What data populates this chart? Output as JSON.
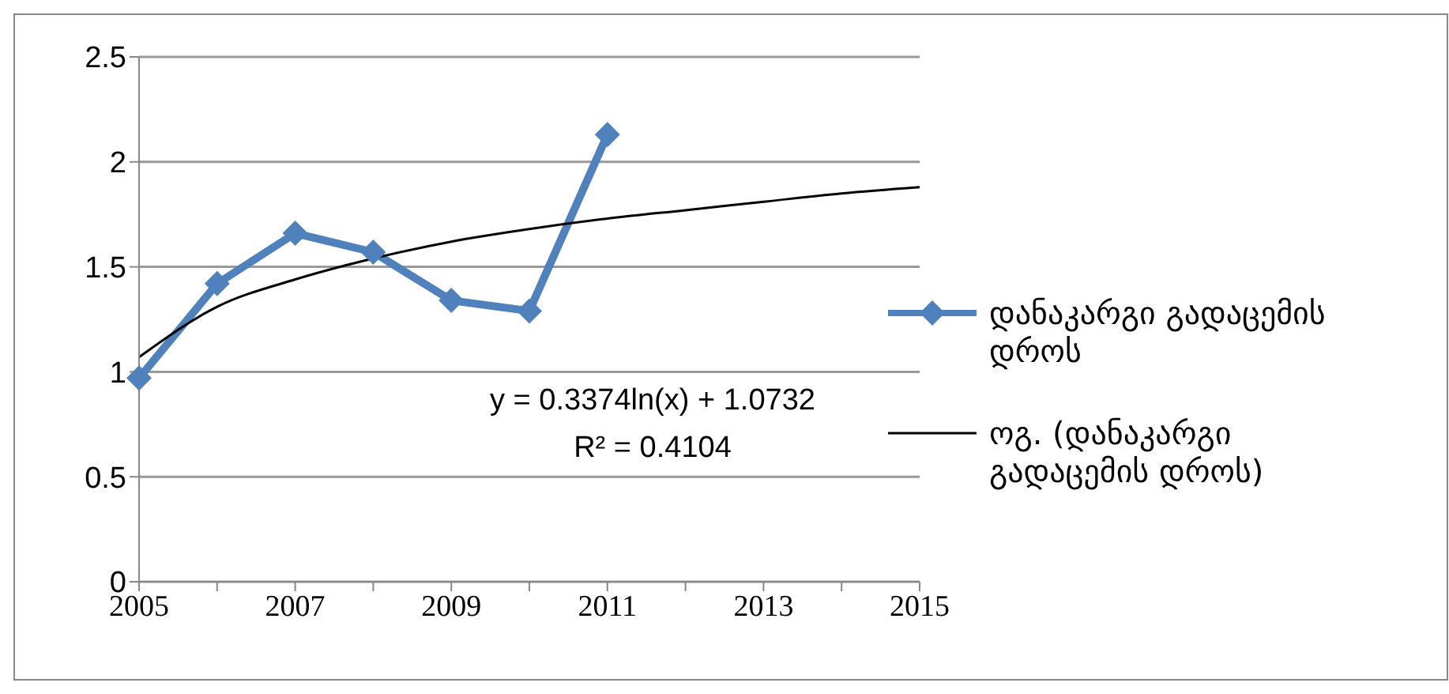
{
  "chart_data": {
    "type": "line",
    "categories": [
      "2005",
      null,
      "2007",
      null,
      "2009",
      null,
      "2011",
      null,
      "2013",
      null,
      "2015"
    ],
    "series": [
      {
        "name": "დანაკარგი გადაცემის დროს",
        "color": "#4f81bd",
        "marker": "diamond",
        "values": [
          0.97,
          1.42,
          1.66,
          1.57,
          1.34,
          1.29,
          2.13,
          null,
          null,
          null,
          null
        ]
      },
      {
        "name": "ოგ. (დანაკარგი გადაცემის დროს)",
        "color": "#000000",
        "marker": "none",
        "values": [
          1.07,
          1.31,
          1.44,
          1.54,
          1.62,
          1.68,
          1.73,
          1.77,
          1.81,
          1.85,
          1.88
        ]
      }
    ],
    "ylim": [
      0,
      2.5
    ],
    "yticks": [
      0,
      0.5,
      1,
      1.5,
      2,
      2.5
    ],
    "grid": "y",
    "legend": "right",
    "annotations": [
      "y = 0.3374ln(x) + 1.0732",
      "R² = 0.4104"
    ]
  }
}
